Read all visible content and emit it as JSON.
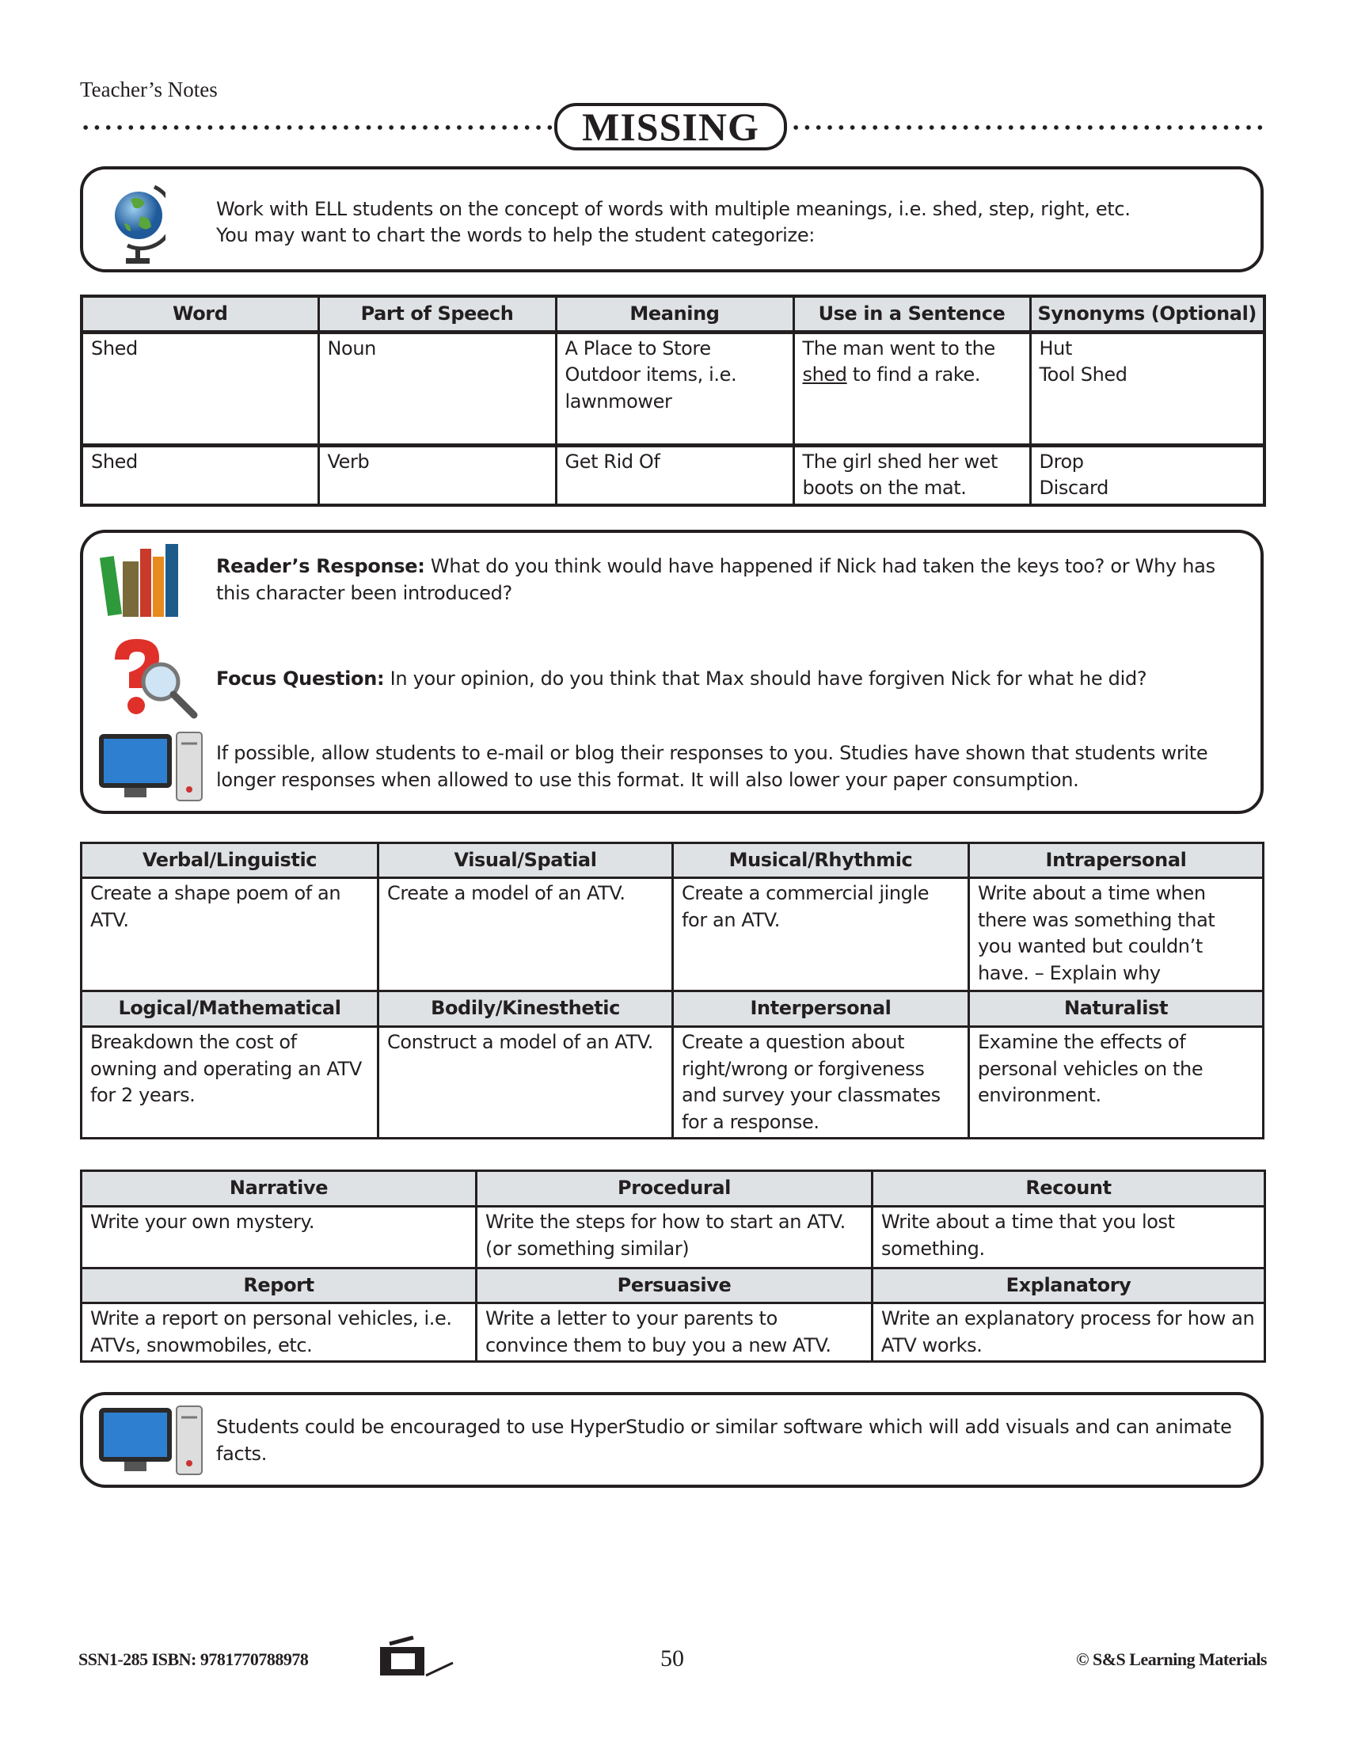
{
  "header": {
    "section": "Teacher’s Notes",
    "title": "MISSING"
  },
  "ell_box": {
    "icon": "globe-icon",
    "text_line1": "Work with ELL students on the concept of words with multiple meanings, i.e. shed, step, right, etc.",
    "text_line2": "You may want to chart the words to help the student categorize:"
  },
  "word_table": {
    "headers": [
      "Word",
      "Part of Speech",
      "Meaning",
      "Use in a Sentence",
      "Synonyms (Optional)"
    ],
    "rows": [
      {
        "word": "Shed",
        "pos": "Noun",
        "meaning": "A Place to Store Outdoor items, i.e. lawnmower",
        "sentence_underlined": "shed",
        "sentence_before": "The man went to the ",
        "sentence_after": " to find a rake.",
        "syn1": "Hut",
        "syn2": "Tool Shed"
      },
      {
        "word": "Shed",
        "pos": "Verb",
        "meaning": "Get Rid Of",
        "sentence_underlined": "",
        "sentence_before": "The girl shed her wet boots on the mat.",
        "sentence_after": "",
        "syn1": "Drop",
        "syn2": "Discard"
      }
    ]
  },
  "response_box": {
    "readers_label": "Reader’s Response:",
    "readers_text": " What do you think would have happened if Nick had taken the keys too? or Why has this character been introduced?",
    "focus_label": "Focus Question:",
    "focus_text": " In your opinion, do you think that Max should have forgiven Nick for what he did?",
    "email_text": "If possible, allow students to e-mail or blog their responses to you.  Studies have shown that students write longer responses when allowed to use this format.  It will also lower your paper consumption.",
    "icons": [
      "books-icon",
      "question-magnifier-icon",
      "computer-icon"
    ]
  },
  "intelligences": [
    {
      "header": "Verbal/Linguistic",
      "text": "Create a shape poem of an ATV."
    },
    {
      "header": "Visual/Spatial",
      "text": "Create a model of an ATV."
    },
    {
      "header": "Musical/Rhythmic",
      "text": "Create a commercial jingle for an ATV."
    },
    {
      "header": "Intrapersonal",
      "text": "Write about a time when there was something that you wanted but couldn’t have. – Explain why"
    },
    {
      "header": "Logical/Mathematical",
      "text": "Breakdown the cost of owning and operating an ATV for 2 years."
    },
    {
      "header": "Bodily/Kinesthetic",
      "text": "Construct a model of an ATV."
    },
    {
      "header": "Interpersonal",
      "text": "Create a question about right/wrong or forgiveness and survey your classmates for a response."
    },
    {
      "header": "Naturalist",
      "text": "Examine the effects of personal vehicles on the environment."
    }
  ],
  "writing": [
    {
      "header": "Narrative",
      "text": "Write your own mystery."
    },
    {
      "header": "Procedural",
      "text": "Write the steps for how to start an ATV. (or something similar)"
    },
    {
      "header": "Recount",
      "text": "Write about a time that you lost something."
    },
    {
      "header": "Report",
      "text": "Write a report on personal vehicles, i.e. ATVs, snowmobiles, etc."
    },
    {
      "header": "Persuasive",
      "text": "Write a letter to your parents to convince them to buy you a new ATV."
    },
    {
      "header": "Explanatory",
      "text": "Write an explanatory process for how an ATV works."
    }
  ],
  "software_box": {
    "icon": "computer-icon",
    "text": "Students could be encouraged to use HyperStudio or similar software which will add visuals and can animate facts."
  },
  "footer": {
    "code": "SSN1-285  ISBN: 9781770788978",
    "icon": "photocopier-icon",
    "page": "50",
    "copyright": "© S&S Learning Materials"
  }
}
